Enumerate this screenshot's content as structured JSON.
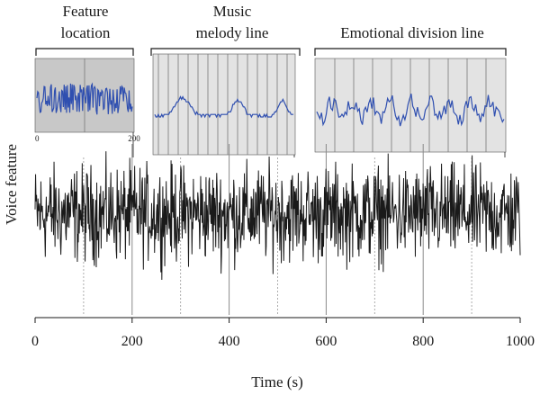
{
  "chart_data": {
    "type": "line",
    "ylabel": "Voice feature",
    "xlabel": "Time (s)",
    "xlim": [
      0,
      1000
    ],
    "x_ticks": [
      "0",
      "200",
      "400",
      "600",
      "800",
      "1000"
    ],
    "x_tick_values": [
      0,
      200,
      400,
      600,
      800,
      1000
    ],
    "minor_gridlines_x": [
      100,
      300,
      500,
      700,
      900
    ],
    "major_gridlines_x": [
      200,
      400,
      600,
      800
    ],
    "series": [
      {
        "name": "",
        "color": "#1a1a1a",
        "style": "noisy signal, mean ~0.5 of range",
        "length": 1000
      }
    ],
    "segments": [
      {
        "title": "Feature location",
        "x_range": [
          0,
          200
        ],
        "inset_color": "#c8c8c8",
        "inset_ticks": [
          "0",
          "200"
        ]
      },
      {
        "title": "Music melody line",
        "x_range": [
          240,
          540
        ],
        "inset_color": "#e2e2e2"
      },
      {
        "title": "Emotional division line",
        "x_range": [
          570,
          1000
        ],
        "inset_color": "#e2e2e2"
      }
    ],
    "inset_line_color": "#2f4fb0"
  }
}
